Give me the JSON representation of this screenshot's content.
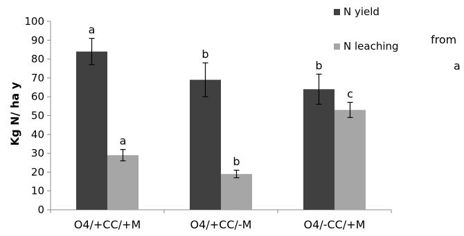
{
  "chart_data": {
    "type": "bar",
    "categories": [
      "O4/+CC/+M",
      "O4/+CC/-M",
      "O4/-CC/+M"
    ],
    "series": [
      {
        "name": "N yield",
        "color": "#404040",
        "values": [
          84,
          69,
          64
        ],
        "errors": [
          7,
          9,
          8
        ],
        "labels": [
          "a",
          "b",
          "b"
        ]
      },
      {
        "name": "N leaching",
        "color": "#a6a6a6",
        "values": [
          29,
          19,
          53
        ],
        "errors": [
          3,
          2,
          4
        ],
        "labels": [
          "a",
          "b",
          "c"
        ]
      }
    ],
    "ylabel": "Kg N/ ha y",
    "ylim": [
      0,
      100
    ],
    "yticks": [
      0,
      10,
      20,
      30,
      40,
      50,
      60,
      70,
      80,
      90,
      100
    ],
    "grid": false,
    "legend_position": "top-right"
  },
  "side_text": {
    "line1": "from",
    "line2": "a"
  }
}
